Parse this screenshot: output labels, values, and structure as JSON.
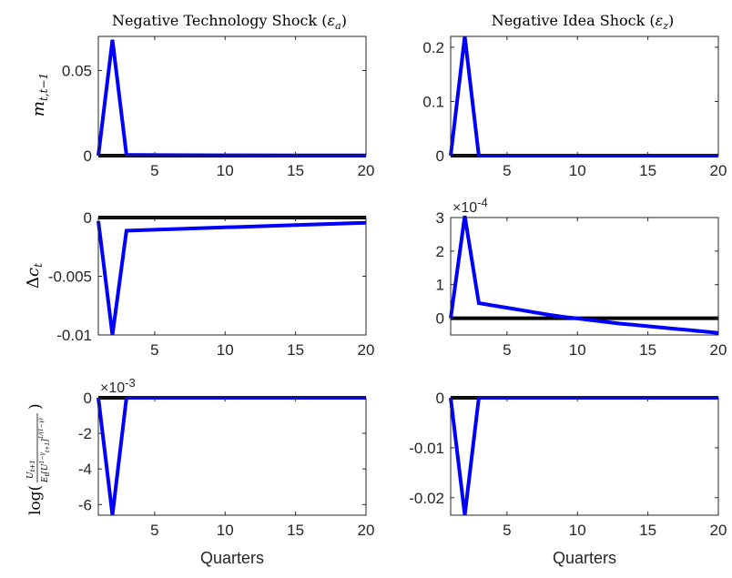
{
  "chart_data": [
    {
      "type": "line",
      "title": "Negative Technology Shock (εa)",
      "ylabel": "m t,t−1",
      "xlabel": "",
      "xlim": [
        1,
        20
      ],
      "ylim": [
        0,
        0.07
      ],
      "xticks": [
        "5",
        "10",
        "15",
        "20"
      ],
      "yticks": [
        "0",
        "0.05"
      ],
      "multiplier": "",
      "grid": false,
      "series": [
        {
          "color": "#0000ff",
          "x": [
            1,
            2,
            3,
            4,
            5,
            10,
            15,
            20
          ],
          "values": [
            0,
            0.068,
            0.0005,
            0.0004,
            0.0003,
            0.0002,
            0.0001,
            0.0001
          ]
        },
        {
          "color": "#000000",
          "x": [
            1,
            20
          ],
          "values": [
            0,
            0
          ]
        }
      ]
    },
    {
      "type": "line",
      "title": "Negative Idea Shock (εz)",
      "ylabel": "",
      "xlabel": "",
      "xlim": [
        1,
        20
      ],
      "ylim": [
        0,
        0.22
      ],
      "xticks": [
        "5",
        "10",
        "15",
        "20"
      ],
      "yticks": [
        "0",
        "0.1",
        "0.2"
      ],
      "multiplier": "",
      "grid": false,
      "series": [
        {
          "color": "#0000ff",
          "x": [
            1,
            2,
            3,
            20
          ],
          "values": [
            0,
            0.22,
            0,
            0
          ]
        },
        {
          "color": "#000000",
          "x": [
            1,
            20
          ],
          "values": [
            0,
            0
          ]
        }
      ]
    },
    {
      "type": "line",
      "title": "",
      "ylabel": "Δc t",
      "xlabel": "",
      "xlim": [
        1,
        20
      ],
      "ylim": [
        -0.01,
        0
      ],
      "xticks": [
        "5",
        "10",
        "15",
        "20"
      ],
      "yticks": [
        "-0.01",
        "-0.005",
        "0"
      ],
      "multiplier": "",
      "grid": false,
      "series": [
        {
          "color": "#0000ff",
          "x": [
            1,
            2,
            3,
            5,
            10,
            15,
            20
          ],
          "values": [
            -0.0003,
            -0.01,
            -0.00112,
            -0.00104,
            -0.00084,
            -0.00064,
            -0.00044
          ]
        },
        {
          "color": "#000000",
          "x": [
            1,
            20
          ],
          "values": [
            0,
            0
          ]
        }
      ]
    },
    {
      "type": "line",
      "title": "",
      "ylabel": "",
      "xlabel": "",
      "xlim": [
        1,
        20
      ],
      "ylim": [
        -0.5,
        3
      ],
      "xticks": [
        "5",
        "10",
        "15",
        "20"
      ],
      "yticks": [
        "0",
        "1",
        "2",
        "3"
      ],
      "multiplier": "×10-4",
      "grid": false,
      "series": [
        {
          "color": "#0000ff",
          "x": [
            1,
            2,
            3,
            4,
            5,
            6,
            7,
            8,
            9,
            10,
            11,
            12,
            13,
            14,
            15,
            16,
            17,
            18,
            19,
            20
          ],
          "values": [
            0,
            3.05,
            0.45,
            0.38,
            0.31,
            0.24,
            0.17,
            0.1,
            0.04,
            -0.01,
            -0.06,
            -0.11,
            -0.16,
            -0.2,
            -0.24,
            -0.28,
            -0.32,
            -0.36,
            -0.4,
            -0.44
          ]
        },
        {
          "color": "#000000",
          "x": [
            1,
            20
          ],
          "values": [
            0,
            0
          ]
        }
      ]
    },
    {
      "type": "line",
      "title": "",
      "ylabel": "log(Ut+1 / Et[U^(1−γ) t+1]^(1/(1−γ)))",
      "xlabel": "Quarters",
      "xlim": [
        1,
        20
      ],
      "ylim": [
        -6.6,
        0
      ],
      "xticks": [
        "5",
        "10",
        "15",
        "20"
      ],
      "yticks": [
        "-6",
        "-4",
        "-2",
        "0"
      ],
      "multiplier": "×10-3",
      "grid": false,
      "series": [
        {
          "color": "#0000ff",
          "x": [
            1,
            2,
            3,
            20
          ],
          "values": [
            0,
            -6.6,
            0,
            0
          ]
        },
        {
          "color": "#000000",
          "x": [
            1,
            20
          ],
          "values": [
            0,
            0
          ]
        }
      ]
    },
    {
      "type": "line",
      "title": "",
      "ylabel": "",
      "xlabel": "Quarters",
      "xlim": [
        1,
        20
      ],
      "ylim": [
        -0.0235,
        0
      ],
      "xticks": [
        "5",
        "10",
        "15",
        "20"
      ],
      "yticks": [
        "-0.02",
        "-0.01",
        "0"
      ],
      "multiplier": "",
      "grid": false,
      "series": [
        {
          "color": "#0000ff",
          "x": [
            1,
            2,
            3,
            20
          ],
          "values": [
            0,
            -0.0235,
            0,
            0
          ]
        },
        {
          "color": "#000000",
          "x": [
            1,
            20
          ],
          "values": [
            0,
            0
          ]
        }
      ]
    }
  ]
}
